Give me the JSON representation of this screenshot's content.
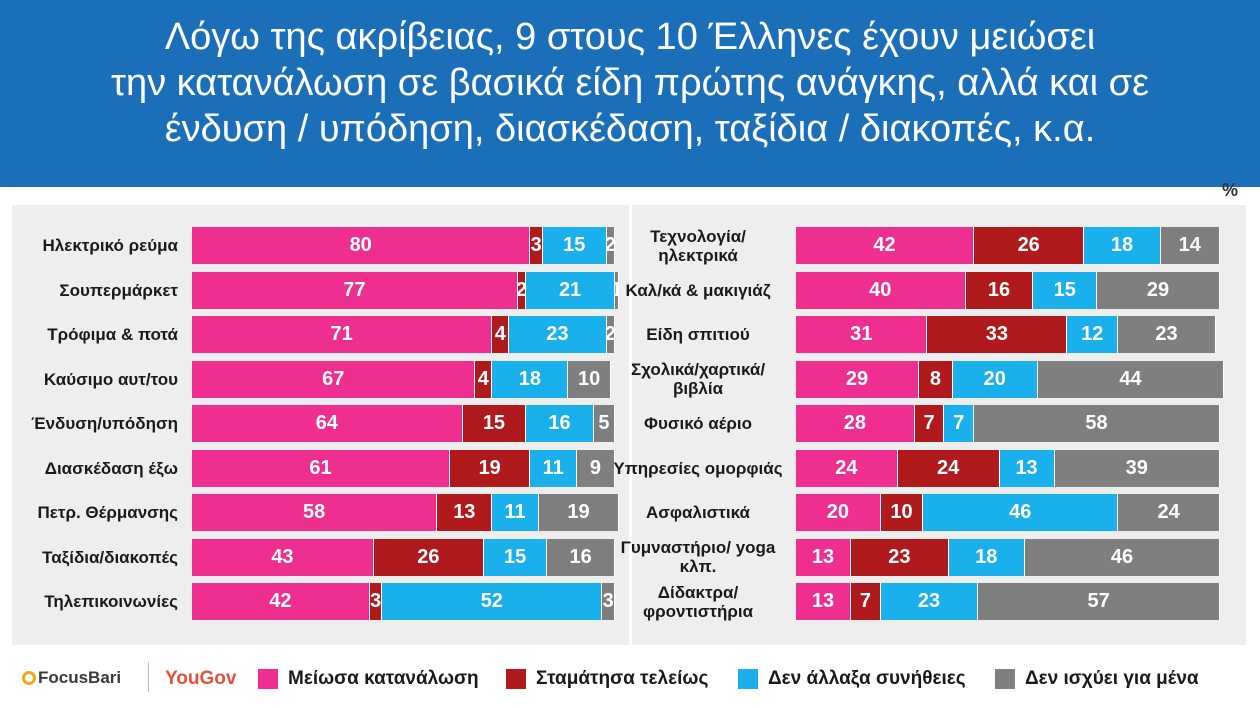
{
  "title": {
    "lines": [
      "Λόγω της ακρίβειας, 9 στους 10 Έλληνες έχουν μειώσει",
      "την κατανάλωση σε βασικά είδη πρώτης ανάγκης, αλλά και σε",
      "ένδυση / υπόδηση, διασκέδαση, ταξίδια / διακοπές, κ.α."
    ]
  },
  "unit_label": "%",
  "logos": {
    "focus": "FocusBari",
    "yougov": "YouGov"
  },
  "colors": {
    "header": "#1b6fb8",
    "reduced": "#ee2f8f",
    "stopped": "#b01a1d",
    "unchanged": "#1ab0ec",
    "na": "#7f7f7f"
  },
  "chart_data": [
    {
      "type": "bar",
      "orientation": "horizontal",
      "stacked": true,
      "xlim": [
        0,
        100
      ],
      "categories": [
        "Ηλεκτρικό ρεύμα",
        "Σουπερμάρκετ",
        "Τρόφιμα & ποτά",
        "Καύσιμο αυτ/του",
        "Ένδυση/υπόδηση",
        "Διασκέδαση έξω",
        "Πετρ. Θέρμανσης",
        "Ταξίδια/διακοπές",
        "Τηλεπικοινωνίες"
      ],
      "series": [
        {
          "name": "Μείωσα κατανάλωση",
          "values": [
            80,
            77,
            71,
            67,
            64,
            61,
            58,
            43,
            42
          ]
        },
        {
          "name": "Σταμάτησα τελείως",
          "values": [
            3,
            2,
            4,
            4,
            15,
            19,
            13,
            26,
            3
          ]
        },
        {
          "name": "Δεν άλλαξα συνήθειες",
          "values": [
            15,
            21,
            23,
            18,
            16,
            11,
            11,
            15,
            52
          ]
        },
        {
          "name": "Δεν ισχύει για μένα",
          "values": [
            2,
            1,
            2,
            10,
            5,
            9,
            19,
            16,
            3
          ]
        }
      ]
    },
    {
      "type": "bar",
      "orientation": "horizontal",
      "stacked": true,
      "xlim": [
        0,
        100
      ],
      "categories": [
        "Τεχνολογία/ ηλεκτρικά",
        "Καλ/κά & μακιγιάζ",
        "Είδη σπιτιού",
        "Σχολικά/χαρτικά/ βιβλία",
        "Φυσικό αέριο",
        "Υπηρεσίες ομορφιάς",
        "Ασφαλιστικά",
        "Γυμναστήριο/ yoga κλπ.",
        "Δίδακτρα/ φροντιστήρια"
      ],
      "series": [
        {
          "name": "Μείωσα κατανάλωση",
          "values": [
            42,
            40,
            31,
            29,
            28,
            24,
            20,
            13,
            13
          ]
        },
        {
          "name": "Σταμάτησα τελείως",
          "values": [
            26,
            16,
            33,
            8,
            7,
            24,
            10,
            23,
            7
          ]
        },
        {
          "name": "Δεν άλλαξα συνήθειες",
          "values": [
            18,
            15,
            12,
            20,
            7,
            13,
            46,
            18,
            23
          ]
        },
        {
          "name": "Δεν ισχύει για μένα",
          "values": [
            14,
            29,
            23,
            44,
            58,
            39,
            24,
            46,
            57
          ]
        }
      ]
    }
  ],
  "legend": [
    {
      "label": "Μείωσα κατανάλωση",
      "color": "#ee2f8f"
    },
    {
      "label": "Σταμάτησα τελείως",
      "color": "#b01a1d"
    },
    {
      "label": "Δεν άλλαξα συνήθειες",
      "color": "#1ab0ec"
    },
    {
      "label": "Δεν ισχύει για μένα",
      "color": "#7f7f7f"
    }
  ]
}
